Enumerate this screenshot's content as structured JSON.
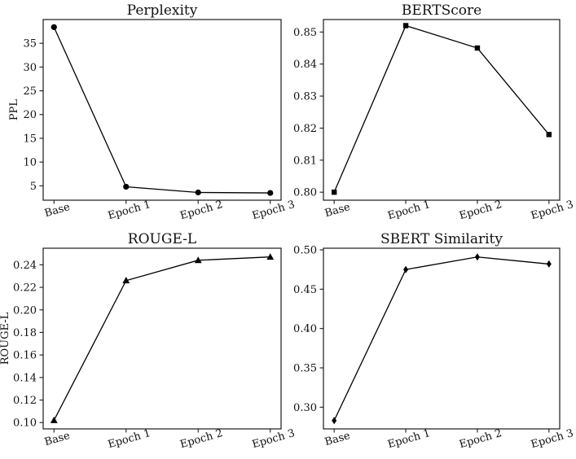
{
  "figure": {
    "background": "#ffffff",
    "axis_color": "#1a1a1a",
    "data_color": "#000000",
    "text_color": "#111111"
  },
  "chart_data": [
    {
      "type": "line",
      "title": "Perplexity",
      "ylabel": "PPL",
      "xlabel": "",
      "marker": "circle",
      "categories": [
        "Base",
        "Epoch 1",
        "Epoch 2",
        "Epoch 3"
      ],
      "values": [
        38.4,
        4.8,
        3.6,
        3.5
      ],
      "ylim": [
        1.97,
        40.0
      ],
      "yticks": [
        5,
        10,
        15,
        20,
        25,
        30,
        35
      ],
      "ytick_labels": [
        "5",
        "10",
        "15",
        "20",
        "25",
        "30",
        "35"
      ],
      "grid": false,
      "legend": null
    },
    {
      "type": "line",
      "title": "BERTScore",
      "ylabel": "",
      "xlabel": "",
      "marker": "square",
      "categories": [
        "Base",
        "Epoch 1",
        "Epoch 2",
        "Epoch 3"
      ],
      "values": [
        0.8,
        0.852,
        0.845,
        0.818
      ],
      "ylim": [
        0.7975,
        0.8539
      ],
      "yticks": [
        0.8,
        0.81,
        0.82,
        0.83,
        0.84,
        0.85
      ],
      "ytick_labels": [
        "0.80",
        "0.81",
        "0.82",
        "0.83",
        "0.84",
        "0.85"
      ],
      "grid": false,
      "legend": null
    },
    {
      "type": "line",
      "title": "ROUGE-L",
      "ylabel": "ROUGE-L",
      "xlabel": "",
      "marker": "triangle",
      "categories": [
        "Base",
        "Epoch 1",
        "Epoch 2",
        "Epoch 3"
      ],
      "values": [
        0.102,
        0.226,
        0.244,
        0.247
      ],
      "ylim": [
        0.0944,
        0.2547
      ],
      "yticks": [
        0.1,
        0.12,
        0.14,
        0.16,
        0.18,
        0.2,
        0.22,
        0.24
      ],
      "ytick_labels": [
        "0.10",
        "0.12",
        "0.14",
        "0.16",
        "0.18",
        "0.20",
        "0.22",
        "0.24"
      ],
      "grid": false,
      "legend": null
    },
    {
      "type": "line",
      "title": "SBERT Similarity",
      "ylabel": "",
      "xlabel": "",
      "marker": "diamond",
      "categories": [
        "Base",
        "Epoch 1",
        "Epoch 2",
        "Epoch 3"
      ],
      "values": [
        0.283,
        0.475,
        0.491,
        0.482
      ],
      "ylim": [
        0.2724,
        0.5021
      ],
      "yticks": [
        0.3,
        0.35,
        0.4,
        0.45,
        0.5
      ],
      "ytick_labels": [
        "0.30",
        "0.35",
        "0.40",
        "0.45",
        "0.50"
      ],
      "grid": false,
      "legend": null
    }
  ]
}
